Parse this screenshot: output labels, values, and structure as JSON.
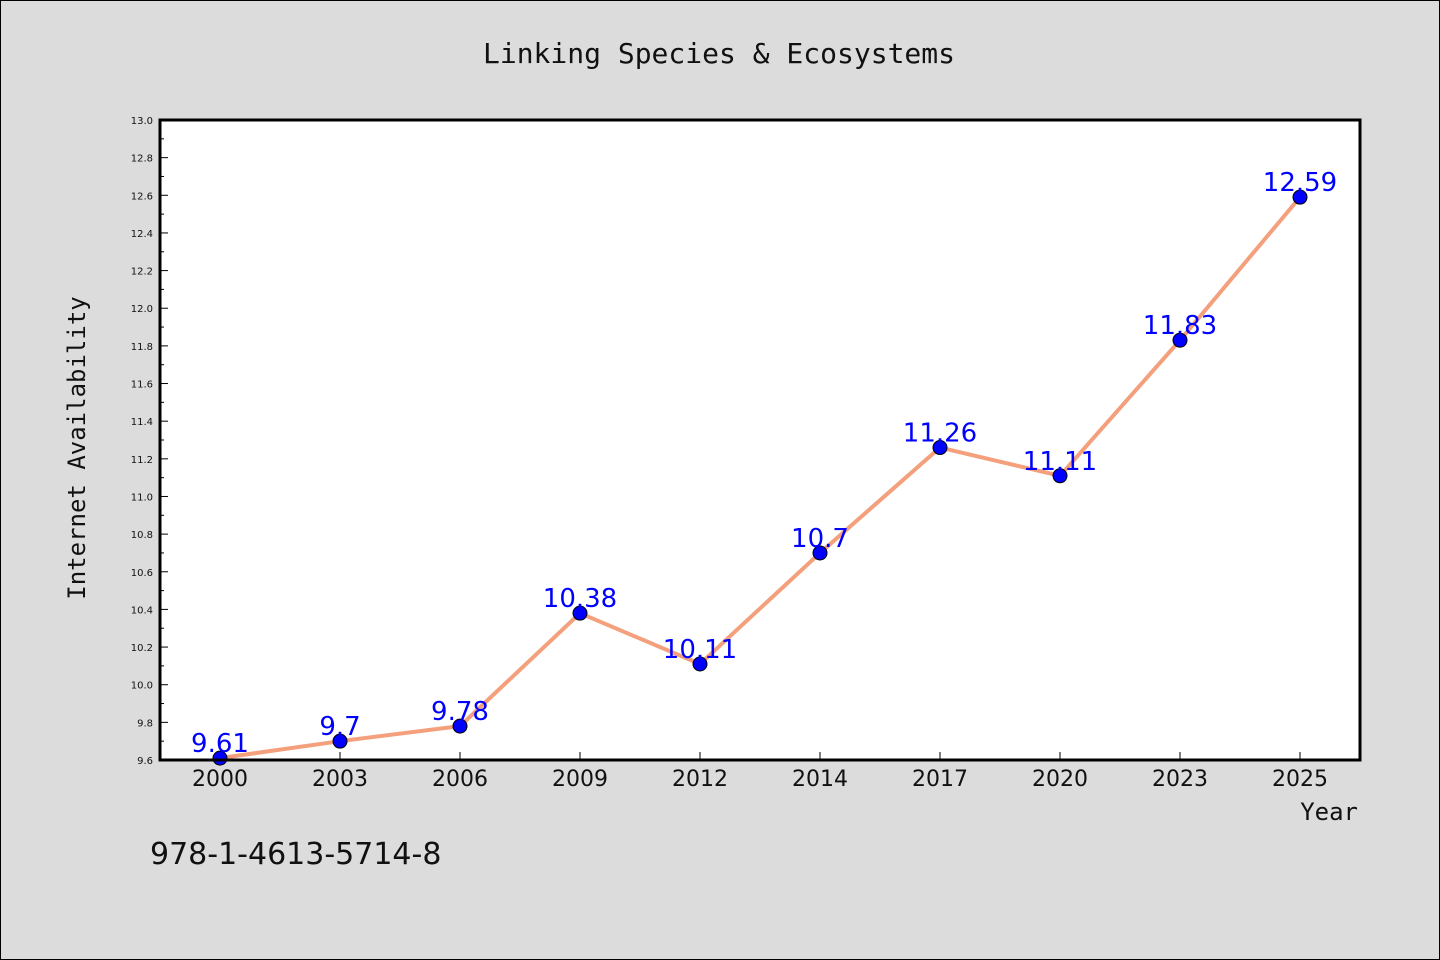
{
  "chart_data": {
    "type": "line",
    "title": "Linking Species & Ecosystems",
    "xlabel": "Year",
    "ylabel": "Internet Availability",
    "categories": [
      "2000",
      "2003",
      "2006",
      "2009",
      "2012",
      "2014",
      "2017",
      "2020",
      "2023",
      "2025"
    ],
    "series": [
      {
        "values": [
          9.61,
          9.7,
          9.78,
          10.38,
          10.11,
          10.7,
          11.26,
          11.11,
          11.83,
          12.59
        ],
        "labels": [
          "9.61",
          "9.7",
          "9.78",
          "10.38",
          "10.11",
          "10.7",
          "11.26",
          "11.11",
          "11.83",
          "12.59"
        ],
        "line_color": "#f4a07c",
        "marker_color": "#0000ff"
      }
    ],
    "ylim": [
      9.6,
      13.0
    ],
    "yticks": [
      "9.6",
      "9.8",
      "10.0",
      "10.2",
      "10.4",
      "10.6",
      "10.8",
      "11.0",
      "11.2",
      "11.4",
      "11.6",
      "11.8",
      "12.0",
      "12.2",
      "12.4",
      "12.6",
      "12.8",
      "13.0"
    ],
    "grid": false,
    "legend": "none"
  },
  "footer": {
    "isbn": "978-1-4613-5714-8"
  },
  "colors": {
    "background": "#dcdcdc",
    "plot_background": "#ffffff"
  }
}
